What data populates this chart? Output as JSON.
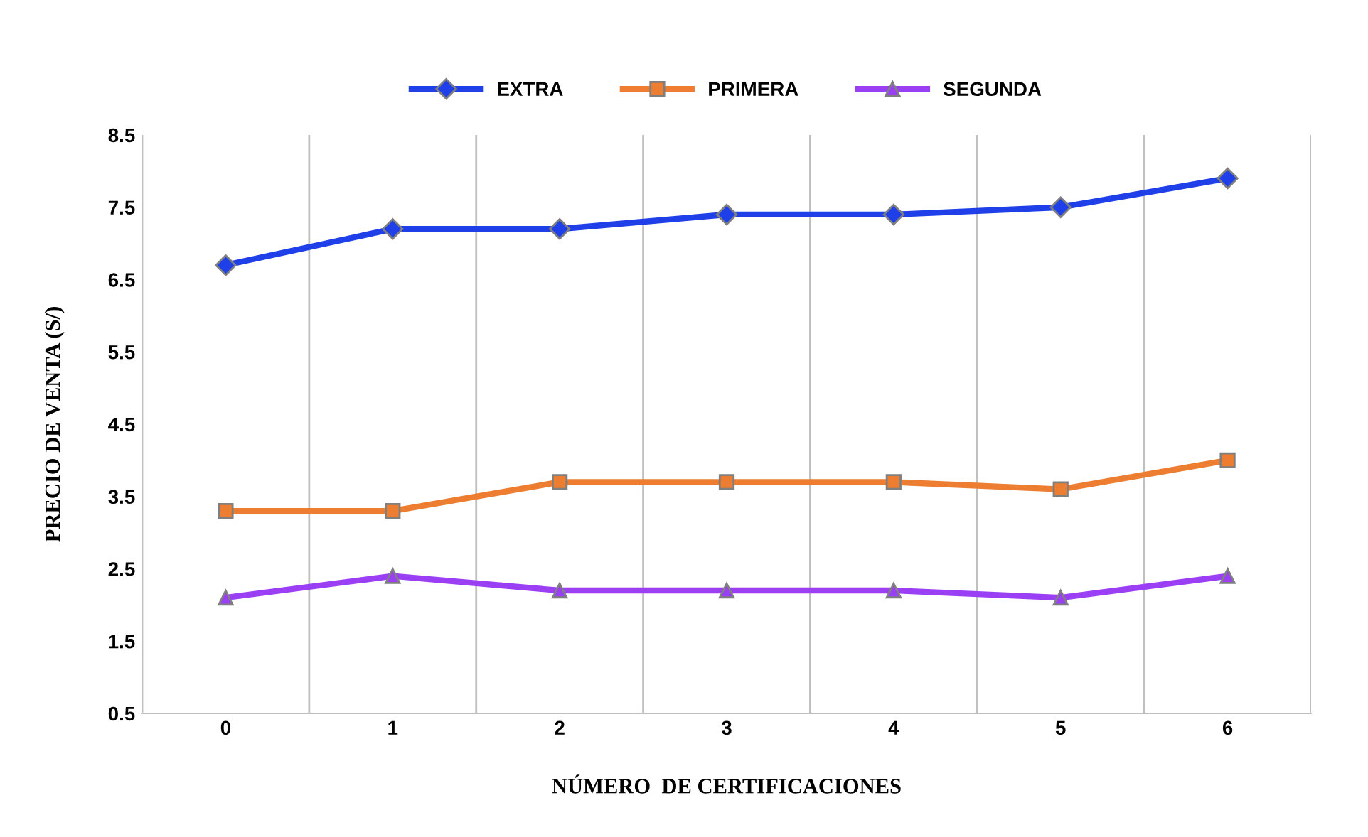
{
  "chart_data": {
    "type": "line",
    "xlabel": "NÚMERO  DE CERTIFICACIONES",
    "ylabel": "PRECIO DE VENTA (S/)",
    "categories": [
      "0",
      "1",
      "2",
      "3",
      "4",
      "5",
      "6"
    ],
    "series": [
      {
        "name": "EXTRA",
        "color": "#1f3fe8",
        "marker": "diamond",
        "values": [
          6.7,
          7.2,
          7.2,
          7.4,
          7.4,
          7.5,
          7.9
        ]
      },
      {
        "name": "PRIMERA",
        "color": "#ed7d31",
        "marker": "square",
        "values": [
          3.3,
          3.3,
          3.7,
          3.7,
          3.7,
          3.6,
          4.0
        ]
      },
      {
        "name": "SEGUNDA",
        "color": "#9b3ff5",
        "marker": "triangle",
        "values": [
          2.1,
          2.4,
          2.2,
          2.2,
          2.2,
          2.1,
          2.4
        ]
      }
    ],
    "ylim": [
      0.5,
      8.5
    ],
    "yticks": [
      0.5,
      1.5,
      2.5,
      3.5,
      4.5,
      5.5,
      6.5,
      7.5,
      8.5
    ],
    "grid": "x",
    "legend": "top",
    "line_style": "solid"
  }
}
